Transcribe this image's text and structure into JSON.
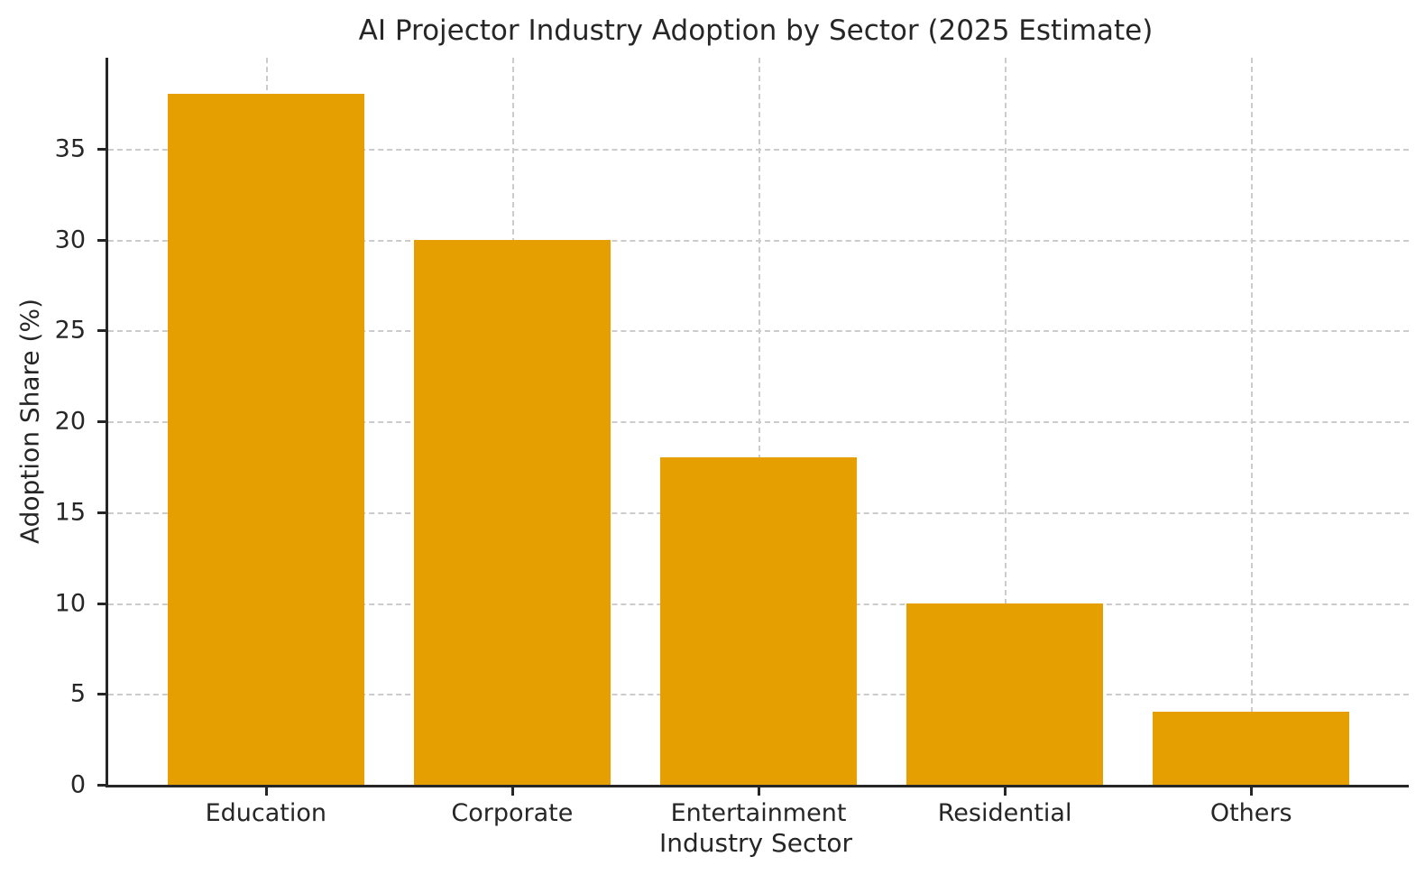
{
  "chart_data": {
    "type": "bar",
    "title": "AI Projector Industry Adoption by Sector (2025 Estimate)",
    "xlabel": "Industry Sector",
    "ylabel": "Adoption Share (%)",
    "categories": [
      "Education",
      "Corporate",
      "Entertainment",
      "Residential",
      "Others"
    ],
    "values": [
      38,
      30,
      18,
      10,
      4
    ],
    "bar_color": "#E69F00",
    "yticks": [
      0,
      5,
      10,
      15,
      20,
      25,
      30,
      35
    ],
    "ylim": [
      0,
      40
    ],
    "xlim": [
      -0.64,
      4.64
    ],
    "bar_width": 0.8,
    "grid": "both, dashed, drawn below bars",
    "grid_color": "#cccccc",
    "axis_color": "#262626",
    "text_color": "#262626",
    "legend": "none"
  }
}
